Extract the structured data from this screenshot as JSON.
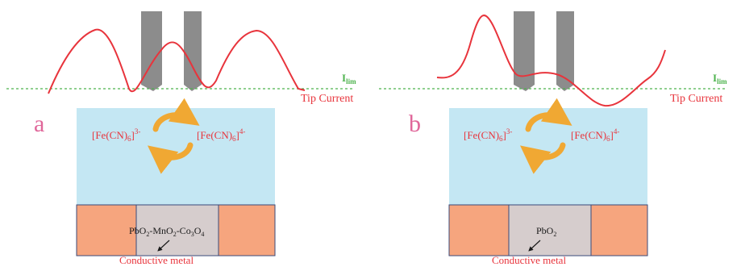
{
  "colors": {
    "curve": "#e8343c",
    "dashed_line": "#4cb24c",
    "label_red": "#e8343c",
    "panel_letter": "#e0679a",
    "electrolyte": "#c4e7f3",
    "substrate_metal": "#f6a57e",
    "catalyst": "#d6cdcd",
    "tip_gray": "#8c8c8c",
    "redox_arrow": "#f0a833",
    "text_dark": "#1a1a1a"
  },
  "icons": {
    "redox_cycle": "circular-arrows-icon",
    "pointer": "arrow-icon"
  },
  "panels": [
    {
      "letter": "a",
      "ilim_base": "I",
      "ilim_sub": "lim",
      "tip_current": "Tip Current",
      "species_left": {
        "base": "[Fe(CN)",
        "sub": "6",
        "close": "]",
        "sup": "3-"
      },
      "species_right": {
        "base": "[Fe(CN)",
        "sub": "6",
        "close": "]",
        "sup": "4-"
      },
      "catalyst_parts": [
        {
          "t": "PbO",
          "s": "2"
        },
        {
          "t": "-MnO",
          "s": "2"
        },
        {
          "t": "-Co",
          "s": "3"
        },
        {
          "t": "O",
          "s": "4"
        }
      ],
      "conductive_metal": "Conductive metal"
    },
    {
      "letter": "b",
      "ilim_base": "I",
      "ilim_sub": "lim",
      "tip_current": "Tip Current",
      "species_left": {
        "base": "[Fe(CN)",
        "sub": "6",
        "close": "]",
        "sup": "3-"
      },
      "species_right": {
        "base": "[Fe(CN)",
        "sub": "6",
        "close": "]",
        "sup": "4-"
      },
      "catalyst_parts": [
        {
          "t": "PbO",
          "s": "2"
        }
      ],
      "conductive_metal": "Conductive metal"
    }
  ]
}
